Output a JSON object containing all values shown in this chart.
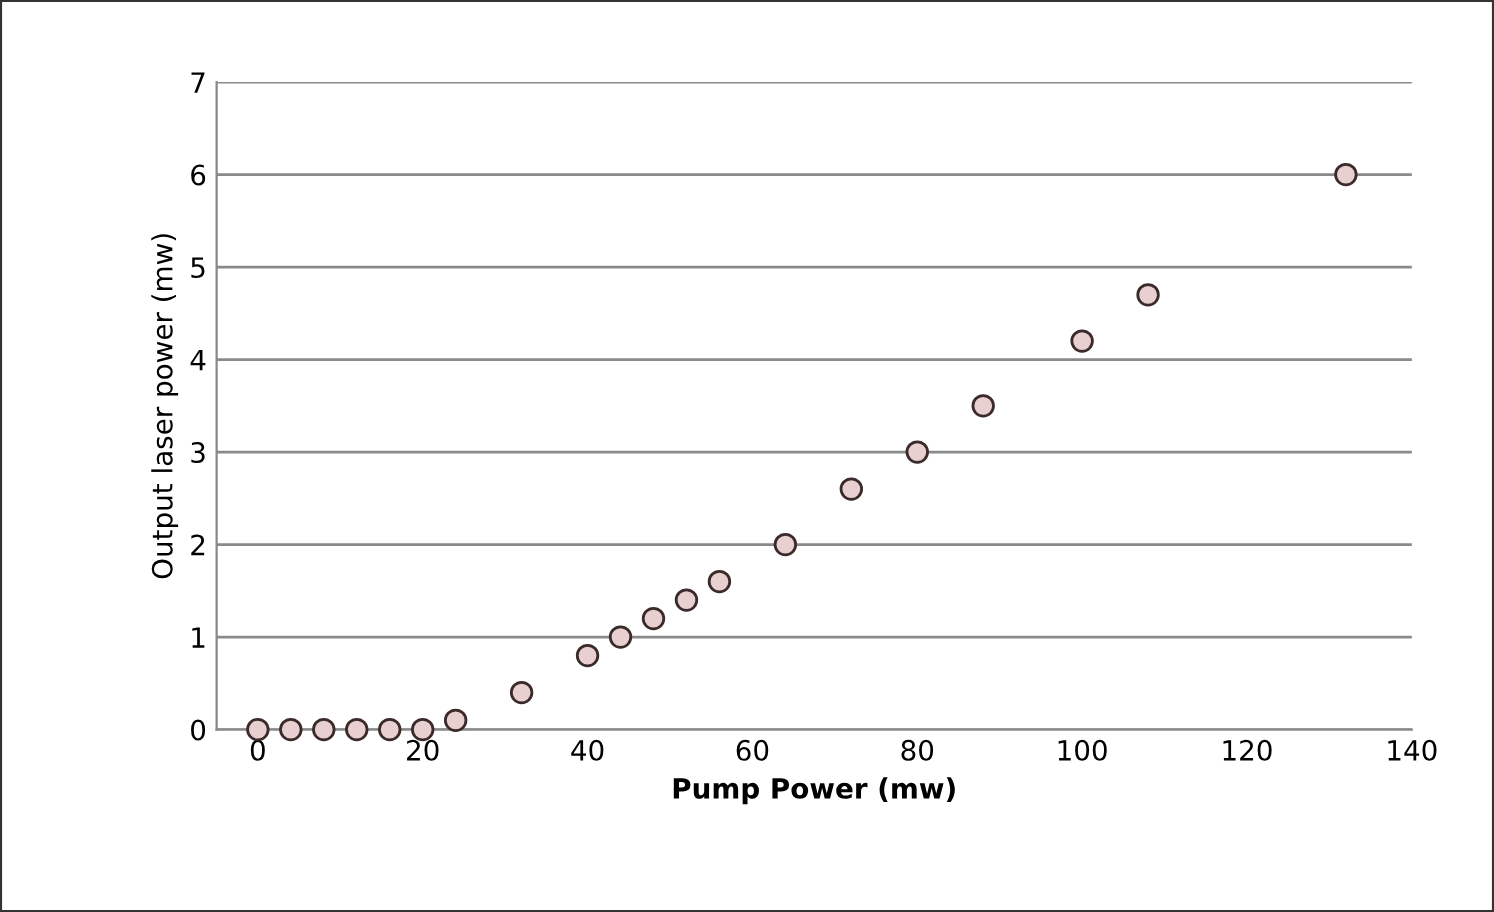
{
  "chart_data": {
    "type": "scatter",
    "xlabel": "Pump Power (mw)",
    "ylabel": "Output laser power (mw)",
    "x": [
      0,
      4,
      8,
      12,
      16,
      20,
      24,
      32,
      40,
      44,
      48,
      52,
      56,
      64,
      72,
      80,
      88,
      100,
      108,
      132
    ],
    "values": [
      0,
      0,
      0,
      0,
      0,
      0,
      0.1,
      0.4,
      0.8,
      1.0,
      1.2,
      1.4,
      1.6,
      2.0,
      2.6,
      3.0,
      3.5,
      4.2,
      4.7,
      6.0
    ],
    "color": "#e8d0d0",
    "marker": "circle",
    "grid": "y",
    "xlim": [
      -5,
      140
    ],
    "xticks": [
      0,
      20,
      40,
      60,
      80,
      100,
      120,
      140
    ],
    "ylim": [
      0,
      7
    ],
    "yticks": [
      0,
      1,
      2,
      3,
      4,
      5,
      6,
      7
    ]
  }
}
